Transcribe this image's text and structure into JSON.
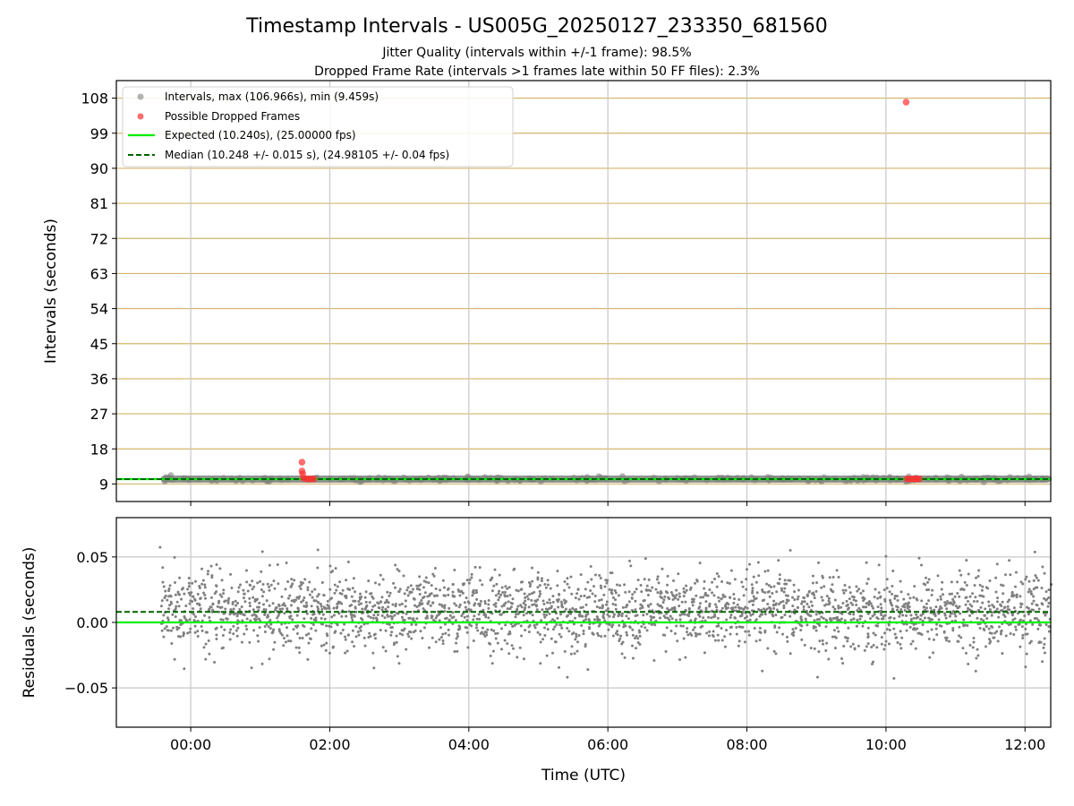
{
  "title": "Timestamp Intervals - US005G_20250127_233350_681560",
  "subtitle_1": "Jitter Quality (intervals within +/-1 frame): 98.5%",
  "subtitle_2": "Dropped Frame Rate (intervals >1 frames late within 50 FF files): 2.3%",
  "colors": {
    "intervals": "#808080",
    "dropped": "#ff3030",
    "expected": "#00ee00",
    "median": "#006400",
    "hgrid": "#d4b46a",
    "vgrid": "#c8c8c8"
  },
  "chart_data": [
    {
      "type": "scatter",
      "ylabel": "Intervals (seconds)",
      "ylim": [
        4.5,
        112.5
      ],
      "yticks": [
        9,
        18,
        27,
        36,
        45,
        54,
        63,
        72,
        81,
        90,
        99,
        108
      ],
      "ytick_labels": [
        "9",
        "18",
        "27",
        "36",
        "45",
        "54",
        "63",
        "72",
        "81",
        "90",
        "99",
        "108"
      ],
      "xlim_hours": [
        -1.07,
        12.37
      ],
      "xticks_hours": [
        0,
        2,
        4,
        6,
        8,
        10,
        12
      ],
      "grid": "both",
      "legend_position": "top-left",
      "legend": [
        {
          "label": "Intervals, max (106.966s), min (9.459s)",
          "marker": "dot",
          "color": "#808080"
        },
        {
          "label": "Possible Dropped Frames",
          "marker": "dot",
          "color": "#ff3030"
        },
        {
          "label": "Expected (10.240s), (25.00000 fps)",
          "marker": "line",
          "color": "#00ee00"
        },
        {
          "label": "Median (10.248 +/- 0.015 s), (24.98105 +/- 0.04 fps)",
          "marker": "dashed",
          "color": "#006400"
        }
      ],
      "series": [
        {
          "name": "Intervals, max (106.966s), min (9.459s)",
          "x_range_hours": [
            -0.43,
            12.37
          ],
          "y_typical": 10.25,
          "y_min": 9.459,
          "y_max": 106.966
        },
        {
          "name": "Possible Dropped Frames",
          "points": [
            {
              "x": 1.6,
              "y": 14.6
            },
            {
              "x": 1.6,
              "y": 12.3
            },
            {
              "x": 1.61,
              "y": 11.6
            },
            {
              "x": 1.62,
              "y": 10.5
            },
            {
              "x": 1.66,
              "y": 10.3
            },
            {
              "x": 1.7,
              "y": 10.3
            },
            {
              "x": 1.74,
              "y": 10.3
            },
            {
              "x": 1.77,
              "y": 10.3
            },
            {
              "x": 10.29,
              "y": 106.966
            },
            {
              "x": 10.3,
              "y": 10.3
            },
            {
              "x": 10.34,
              "y": 10.3
            },
            {
              "x": 10.38,
              "y": 10.3
            },
            {
              "x": 10.42,
              "y": 10.3
            },
            {
              "x": 10.45,
              "y": 10.3
            },
            {
              "x": 10.48,
              "y": 10.3
            }
          ]
        },
        {
          "name": "Expected (10.240s), (25.00000 fps)",
          "y": 10.24
        },
        {
          "name": "Median (10.248 +/- 0.015 s), (24.98105 +/- 0.04 fps)",
          "y": 10.248
        }
      ]
    },
    {
      "type": "scatter",
      "xlabel": "Time (UTC)",
      "ylabel": "Residuals (seconds)",
      "ylim": [
        -0.08,
        0.08
      ],
      "yticks": [
        -0.05,
        0.0,
        0.05
      ],
      "ytick_labels": [
        "−0.05",
        "0.00",
        "0.05"
      ],
      "xlim_hours": [
        -1.07,
        12.37
      ],
      "xticks_hours": [
        0,
        2,
        4,
        6,
        8,
        10,
        12
      ],
      "xtick_labels": [
        "00:00",
        "02:00",
        "04:00",
        "06:00",
        "08:00",
        "10:00",
        "12:00"
      ],
      "grid": "both",
      "residuals": {
        "x_range_hours": [
          -0.43,
          12.37
        ],
        "center": 0.008,
        "spread": 0.015,
        "min": -0.045,
        "max": 0.058
      },
      "expected_line_y": 0.0,
      "median_line_y": 0.008
    }
  ]
}
